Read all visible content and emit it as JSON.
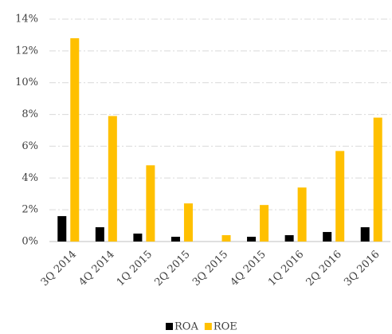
{
  "chart_data": {
    "type": "bar",
    "categories": [
      "3Q 2014",
      "4Q 2014",
      "1Q 2015",
      "2Q 2015",
      "3Q 2015",
      "4Q 2015",
      "1Q 2016",
      "2Q 2016",
      "3Q 2016"
    ],
    "series": [
      {
        "name": "ROA",
        "color": "#000000",
        "values": [
          1.6,
          0.9,
          0.5,
          0.3,
          0,
          0.3,
          0.4,
          0.6,
          0.9
        ]
      },
      {
        "name": "ROE",
        "color": "#ffc000",
        "values": [
          12.8,
          7.9,
          4.8,
          2.4,
          0.4,
          2.3,
          3.4,
          5.7,
          7.8
        ]
      }
    ],
    "ylim": [
      0,
      14
    ],
    "yticks": [
      {
        "value": 0,
        "label": "0%"
      },
      {
        "value": 2,
        "label": "2%"
      },
      {
        "value": 4,
        "label": "4%"
      },
      {
        "value": 6,
        "label": "6%"
      },
      {
        "value": 8,
        "label": "8%"
      },
      {
        "value": 10,
        "label": "10%"
      },
      {
        "value": 12,
        "label": "12%"
      },
      {
        "value": 14,
        "label": "14%"
      }
    ],
    "grid": true,
    "legend": "bottom"
  }
}
